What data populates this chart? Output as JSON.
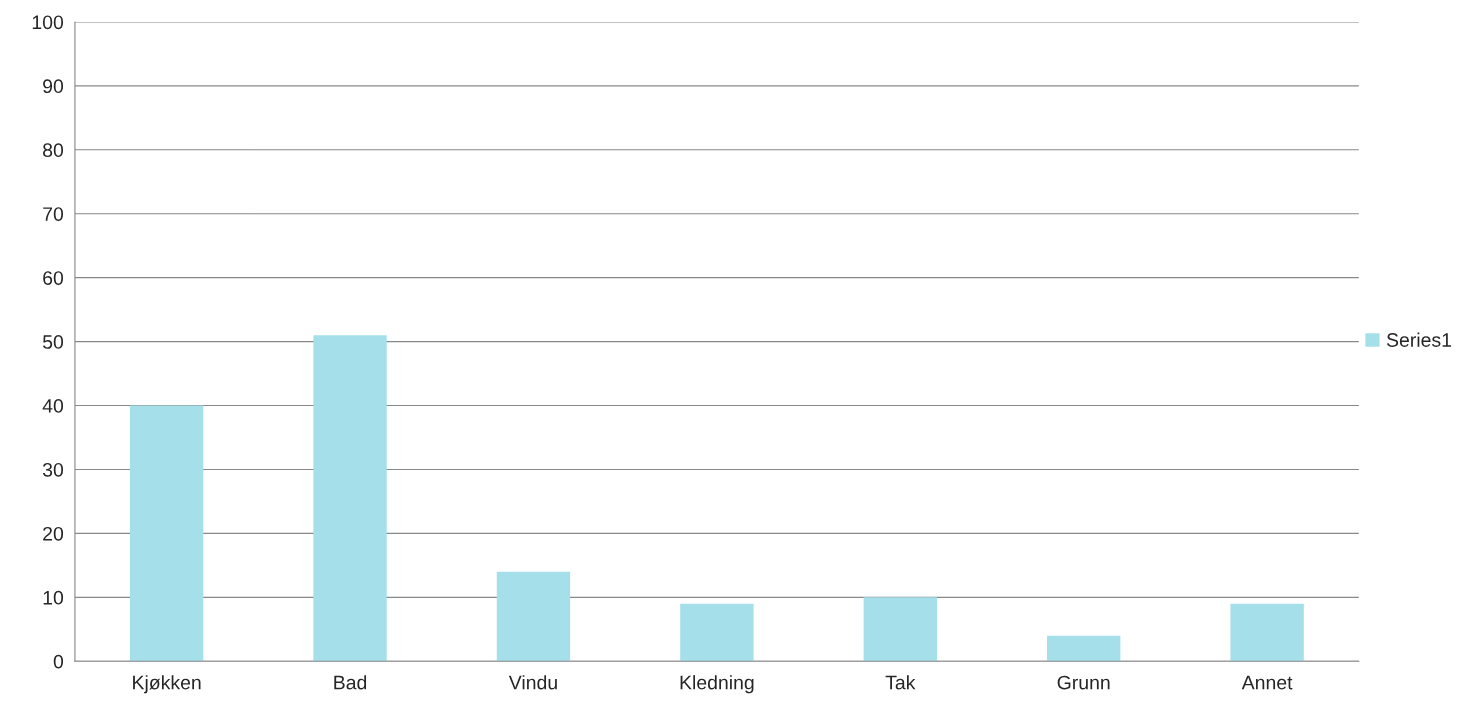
{
  "chart_data": {
    "type": "bar",
    "categories": [
      "Kjøkken",
      "Bad",
      "Vindu",
      "Kledning",
      "Tak",
      "Grunn",
      "Annet"
    ],
    "series": [
      {
        "name": "Series1",
        "color": "#a5dfe9",
        "values": [
          40,
          51,
          14,
          9,
          10,
          4,
          9
        ]
      }
    ],
    "ylim": [
      0,
      100
    ],
    "yticks": [
      0,
      10,
      20,
      30,
      40,
      50,
      60,
      70,
      80,
      90,
      100
    ],
    "grid": "y",
    "legend": "right"
  }
}
